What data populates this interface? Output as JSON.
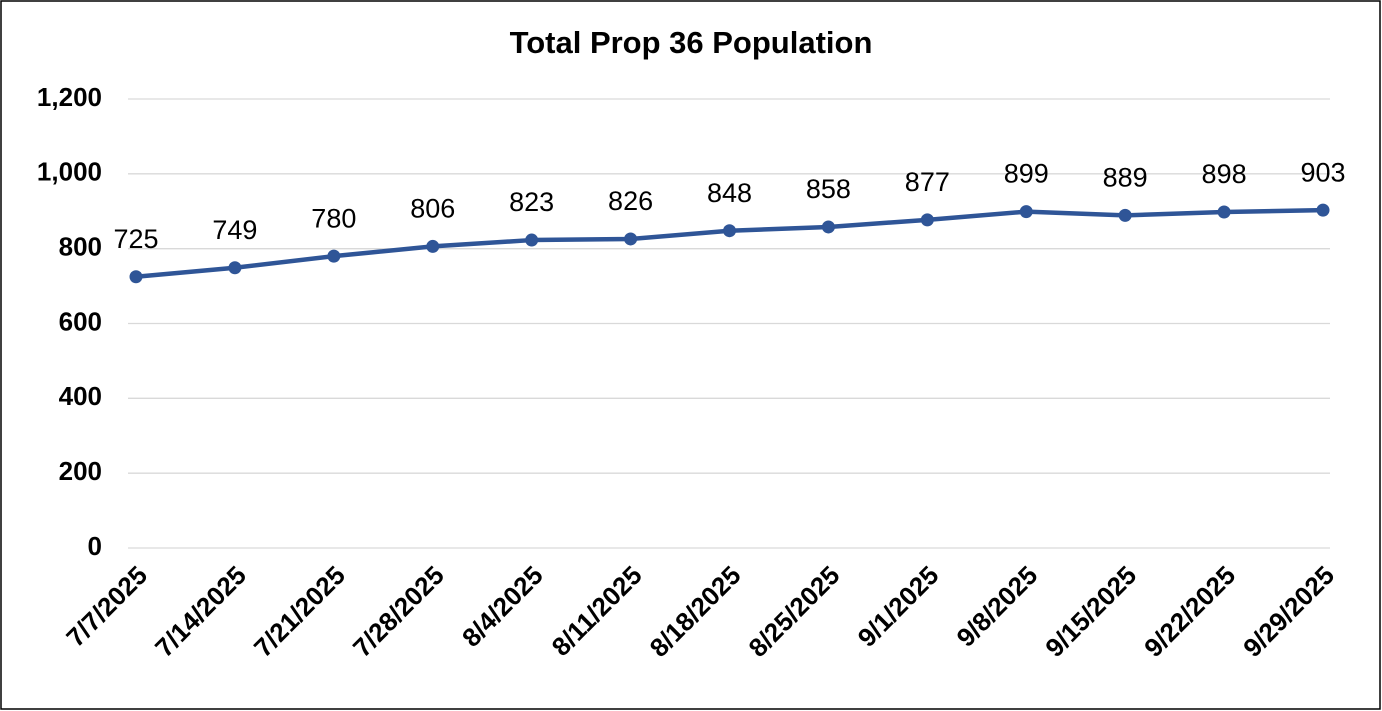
{
  "chart_data": {
    "type": "line",
    "title": "Total Prop 36 Population",
    "categories": [
      "7/7/2025",
      "7/14/2025",
      "7/21/2025",
      "7/28/2025",
      "8/4/2025",
      "8/11/2025",
      "8/18/2025",
      "8/25/2025",
      "9/1/2025",
      "9/8/2025",
      "9/15/2025",
      "9/22/2025",
      "9/29/2025"
    ],
    "values": [
      725,
      749,
      780,
      806,
      823,
      826,
      848,
      858,
      877,
      899,
      889,
      898,
      903
    ],
    "color": "#2f5597",
    "ylim": [
      0,
      1200
    ],
    "yticks": [
      0,
      200,
      400,
      600,
      800,
      {
        "value": 1000,
        "label": "1,000"
      },
      {
        "value": 1200,
        "label": "1,200"
      }
    ],
    "grid": true
  }
}
